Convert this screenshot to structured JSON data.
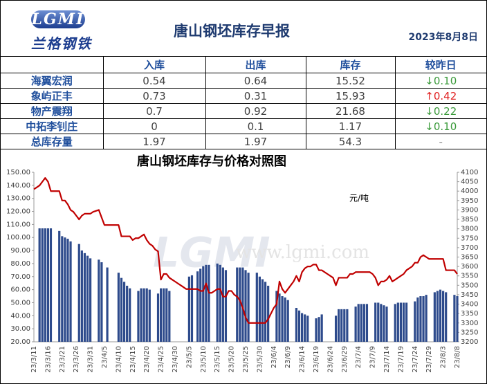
{
  "header": {
    "logo": "LGMI",
    "brand": "兰格钢铁",
    "title": "唐山钢坯库存早报",
    "date": "2023年8月8日"
  },
  "table": {
    "columns": [
      "入库",
      "出库",
      "库存",
      "较昨日"
    ],
    "rows": [
      [
        "海翼宏润",
        0.54,
        0.64,
        15.52,
        "↓0.10"
      ],
      [
        "象屿正丰",
        0.73,
        0.31,
        15.93,
        "↑0.42"
      ],
      [
        "物产震翔",
        0.7,
        0.92,
        21.68,
        "↓0.22"
      ],
      [
        "中拓李钊庄",
        0,
        0.1,
        1.17,
        "↓0.10"
      ],
      [
        "总库存量",
        1.97,
        1.97,
        54.3,
        "-"
      ]
    ]
  },
  "chart_data": {
    "type": "combo",
    "title": "唐山钢坯库存与价格对照图",
    "annotation": "元/吨",
    "watermark": "www.lgmi.com",
    "categories": [
      "23/3/11",
      null,
      null,
      null,
      null,
      "23/3/16",
      null,
      null,
      null,
      null,
      "23/3/21",
      null,
      null,
      null,
      null,
      "23/3/26",
      null,
      null,
      null,
      null,
      "23/3/31",
      null,
      null,
      null,
      null,
      "23/4/5",
      null,
      null,
      null,
      null,
      "23/4/10",
      null,
      null,
      null,
      null,
      "23/4/15",
      null,
      null,
      null,
      null,
      "23/4/20",
      null,
      null,
      null,
      null,
      "23/4/25",
      null,
      null,
      null,
      null,
      "23/4/30",
      null,
      null,
      null,
      null,
      "23/5/5",
      null,
      null,
      null,
      null,
      "23/5/10",
      null,
      null,
      null,
      null,
      "23/5/15",
      null,
      null,
      null,
      null,
      "23/5/20",
      null,
      null,
      null,
      null,
      "23/5/25",
      null,
      null,
      null,
      null,
      "23/5/30",
      null,
      null,
      null,
      null,
      "23/6/4",
      null,
      null,
      null,
      null,
      "23/6/9",
      null,
      null,
      null,
      null,
      "23/6/14",
      null,
      null,
      null,
      null,
      "23/6/19",
      null,
      null,
      null,
      null,
      "23/6/24",
      null,
      null,
      null,
      null,
      "23/6/29",
      null,
      null,
      null,
      null,
      "23/7/4",
      null,
      null,
      null,
      null,
      "23/7/9",
      null,
      null,
      null,
      null,
      "23/7/14",
      null,
      null,
      null,
      null,
      "23/7/19",
      null,
      null,
      null,
      null,
      "23/7/24",
      null,
      null,
      null,
      null,
      "23/7/29",
      null,
      null,
      null,
      null,
      "23/8/3",
      null,
      null,
      null,
      null,
      "23/8/8"
    ],
    "series": [
      {
        "type": "bar",
        "color": "#2e4b8c",
        "values": [
          null,
          null,
          107,
          107,
          107,
          107,
          107,
          null,
          null,
          105,
          101,
          100,
          99,
          97,
          null,
          null,
          95,
          90,
          88,
          86,
          84,
          null,
          null,
          83,
          81,
          null,
          77,
          null,
          null,
          null,
          73,
          69,
          66,
          63,
          61,
          null,
          null,
          59,
          61,
          61,
          61,
          60,
          null,
          null,
          57,
          61,
          61,
          61,
          59,
          null,
          null,
          null,
          null,
          null,
          null,
          70,
          71,
          null,
          74,
          76,
          78,
          79,
          79,
          null,
          null,
          80,
          79,
          77,
          75,
          null,
          null,
          null,
          77,
          77,
          77,
          75,
          73,
          null,
          null,
          73,
          70,
          68,
          66,
          63,
          null,
          null,
          59,
          57,
          55,
          54,
          52,
          null,
          null,
          46,
          44,
          42,
          41,
          40,
          null,
          null,
          38,
          39,
          41,
          null,
          null,
          null,
          null,
          40,
          45,
          45,
          45,
          45,
          null,
          null,
          47,
          49,
          49,
          49,
          49,
          null,
          null,
          50,
          50,
          49,
          48,
          47,
          null,
          null,
          49,
          50,
          50,
          50,
          50,
          null,
          null,
          51,
          54,
          55,
          55,
          56,
          null,
          null,
          58,
          59,
          60,
          59,
          58,
          null,
          null,
          56,
          55
        ]
      },
      {
        "type": "line",
        "color": "#c00000",
        "axis": "y2",
        "values": [
          4010,
          4020,
          4030,
          4050,
          4070,
          4050,
          4000,
          4000,
          4000,
          4000,
          3950,
          3950,
          3930,
          3900,
          3890,
          3870,
          3850,
          3870,
          3880,
          3880,
          3880,
          3890,
          3895,
          3900,
          3860,
          3820,
          3820,
          3820,
          3820,
          3820,
          3820,
          3760,
          3760,
          3760,
          3760,
          3740,
          3750,
          3750,
          3760,
          3770,
          3740,
          3720,
          3710,
          3690,
          3680,
          3530,
          3560,
          3560,
          3540,
          3530,
          3520,
          3510,
          3500,
          3490,
          3480,
          3480,
          3480,
          3480,
          3480,
          3470,
          3470,
          3510,
          3460,
          3460,
          3470,
          3480,
          3480,
          3440,
          3440,
          3470,
          3470,
          3450,
          3440,
          3420,
          3380,
          3330,
          3300,
          3300,
          3300,
          3300,
          3300,
          3300,
          3300,
          3320,
          3350,
          3380,
          3400,
          3520,
          3480,
          3460,
          3480,
          3500,
          3520,
          3550,
          3520,
          3570,
          3590,
          3600,
          3600,
          3610,
          3610,
          3580,
          3580,
          3570,
          3560,
          3550,
          3540,
          3500,
          3540,
          3540,
          3540,
          3540,
          3560,
          3560,
          3570,
          3570,
          3570,
          3570,
          3570,
          3570,
          3560,
          3540,
          3500,
          3520,
          3520,
          3530,
          3550,
          3520,
          3530,
          3540,
          3550,
          3560,
          3580,
          3590,
          3600,
          3620,
          3620,
          3650,
          3660,
          3650,
          3640,
          3640,
          3640,
          3640,
          3640,
          3640,
          3580,
          3580,
          3580,
          3580,
          3560
        ]
      }
    ],
    "ylim": [
      20,
      150
    ],
    "yticks": [
      {
        "value": 20,
        "label": "20.00"
      },
      {
        "value": 30,
        "label": "30.00"
      },
      {
        "value": 40,
        "label": "40.00"
      },
      {
        "value": 50,
        "label": "50.00"
      },
      {
        "value": 60,
        "label": "60.00"
      },
      {
        "value": 70,
        "label": "70.00"
      },
      {
        "value": 80,
        "label": "80.00"
      },
      {
        "value": 90,
        "label": "90.00"
      },
      {
        "value": 100,
        "label": "100.00"
      },
      {
        "value": 110,
        "label": "110.00"
      },
      {
        "value": 120,
        "label": "120.00"
      },
      {
        "value": 130,
        "label": "130.00"
      },
      {
        "value": 140,
        "label": "140.00"
      },
      {
        "value": 150,
        "label": "150.00"
      }
    ],
    "y2lim": [
      3200,
      4100
    ],
    "y2ticks": [
      3200,
      3250,
      3300,
      3350,
      3400,
      3450,
      3500,
      3550,
      3600,
      3650,
      3700,
      3750,
      3800,
      3850,
      3900,
      3950,
      4000,
      4050,
      4100
    ],
    "grid": false
  }
}
